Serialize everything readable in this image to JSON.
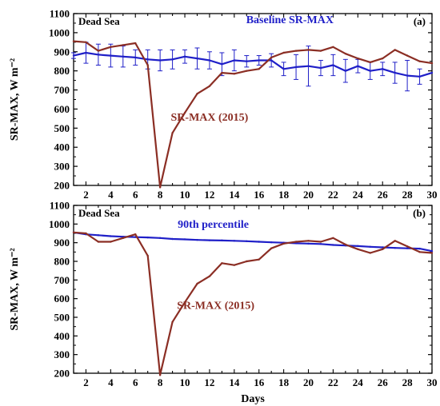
{
  "figure": {
    "xlabel": "Days",
    "colors": {
      "baseline": "#1f1fc8",
      "sr2015": "#8b2e24",
      "axis": "#000000"
    }
  },
  "chart_data": [
    {
      "type": "line",
      "panel_label": "(a)",
      "location_label": "Dead Sea",
      "xlabel": "",
      "ylabel": "SR-MAX, W m⁻²",
      "xlim": [
        1,
        30
      ],
      "ylim": [
        200,
        1100
      ],
      "xticks": [
        2,
        4,
        6,
        8,
        10,
        12,
        14,
        16,
        18,
        20,
        22,
        24,
        26,
        28,
        30
      ],
      "yticks": [
        200,
        300,
        400,
        500,
        600,
        700,
        800,
        900,
        1000,
        1100
      ],
      "grid": false,
      "x": [
        1,
        2,
        3,
        4,
        5,
        6,
        7,
        8,
        9,
        10,
        11,
        12,
        13,
        14,
        15,
        16,
        17,
        18,
        19,
        20,
        21,
        22,
        23,
        24,
        25,
        26,
        27,
        28,
        29,
        30
      ],
      "series": [
        {
          "name": "Baseline SR-MAX",
          "color": "#1f1fc8",
          "values": [
            880,
            895,
            885,
            880,
            875,
            870,
            860,
            855,
            860,
            875,
            865,
            855,
            835,
            855,
            850,
            855,
            855,
            810,
            820,
            825,
            815,
            830,
            800,
            825,
            800,
            810,
            790,
            775,
            770,
            790
          ],
          "error": [
            15,
            55,
            55,
            60,
            55,
            40,
            50,
            55,
            50,
            35,
            55,
            45,
            60,
            55,
            30,
            25,
            35,
            35,
            65,
            105,
            40,
            55,
            60,
            35,
            45,
            35,
            55,
            80,
            40,
            0
          ]
        },
        {
          "name": "SR-MAX (2015)",
          "color": "#8b2e24",
          "values": [
            955,
            950,
            905,
            925,
            935,
            945,
            830,
            190,
            475,
            580,
            680,
            720,
            790,
            785,
            800,
            810,
            870,
            895,
            905,
            910,
            905,
            925,
            890,
            865,
            845,
            865,
            910,
            880,
            850,
            840
          ]
        }
      ],
      "annotations": [
        {
          "text": "Baseline SR-MAX",
          "color": "#1f1fc8",
          "x": 18.5,
          "y": 1050
        },
        {
          "text": "SR-MAX (2015)",
          "color": "#8b2e24",
          "x": 12,
          "y": 540
        }
      ]
    },
    {
      "type": "line",
      "panel_label": "(b)",
      "location_label": "Dead Sea",
      "xlabel": "Days",
      "ylabel": "SR-MAX, W m⁻²",
      "xlim": [
        1,
        30
      ],
      "ylim": [
        200,
        1100
      ],
      "xticks": [
        2,
        4,
        6,
        8,
        10,
        12,
        14,
        16,
        18,
        20,
        22,
        24,
        26,
        28,
        30
      ],
      "yticks": [
        200,
        300,
        400,
        500,
        600,
        700,
        800,
        900,
        1000,
        1100
      ],
      "grid": false,
      "x": [
        1,
        2,
        3,
        4,
        5,
        6,
        7,
        8,
        9,
        10,
        11,
        12,
        13,
        14,
        15,
        16,
        17,
        18,
        19,
        20,
        21,
        22,
        23,
        24,
        25,
        26,
        27,
        28,
        29,
        30
      ],
      "series": [
        {
          "name": "90th percentile",
          "color": "#1f1fc8",
          "values": [
            955,
            945,
            940,
            935,
            932,
            930,
            928,
            925,
            920,
            918,
            915,
            913,
            912,
            910,
            908,
            905,
            902,
            900,
            897,
            895,
            893,
            888,
            885,
            882,
            878,
            875,
            872,
            870,
            868,
            855
          ]
        },
        {
          "name": "SR-MAX (2015)",
          "color": "#8b2e24",
          "values": [
            955,
            950,
            905,
            905,
            925,
            945,
            830,
            190,
            475,
            580,
            680,
            720,
            790,
            780,
            800,
            810,
            870,
            895,
            905,
            910,
            905,
            925,
            890,
            865,
            845,
            865,
            910,
            880,
            850,
            845
          ]
        }
      ],
      "annotations": [
        {
          "text": "90th percentile",
          "color": "#1f1fc8",
          "x": 12.3,
          "y": 980
        },
        {
          "text": "SR-MAX (2015)",
          "color": "#8b2e24",
          "x": 12.5,
          "y": 545
        }
      ]
    }
  ]
}
